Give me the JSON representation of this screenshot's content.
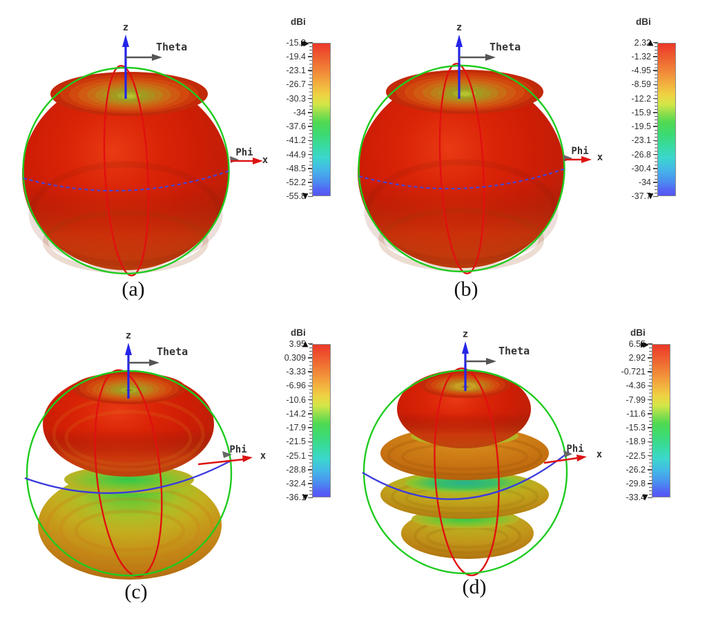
{
  "figure": {
    "background": "#ffffff",
    "panels": [
      {
        "id": "a",
        "caption": "(a)",
        "axis_labels": {
          "z": "z",
          "theta": "Theta",
          "phi": "Phi",
          "x": "x"
        },
        "colorbar": {
          "title": "dBi",
          "marker_top": "▶▶",
          "marker_bottom": "▼",
          "ticks": [
            "-15.8",
            "-19.4",
            "-23.1",
            "-26.7",
            "-30.3",
            "-34",
            "-37.6",
            "-41.2",
            "-44.9",
            "-48.5",
            "-52.2",
            "-55.8"
          ]
        }
      },
      {
        "id": "b",
        "caption": "(b)",
        "axis_labels": {
          "z": "z",
          "theta": "Theta",
          "phi": "Phi",
          "x": "x"
        },
        "colorbar": {
          "title": "dBi",
          "marker_top": "▲",
          "marker_bottom": "▼",
          "ticks": [
            "2.32",
            "-1.32",
            "-4.95",
            "-8.59",
            "-12.2",
            "-15.9",
            "-19.5",
            "-23.1",
            "-26.8",
            "-30.4",
            "-34",
            "-37.7"
          ]
        }
      },
      {
        "id": "c",
        "caption": "(c)",
        "axis_labels": {
          "z": "z",
          "theta": "Theta",
          "phi": "Phi",
          "x": "x"
        },
        "colorbar": {
          "title": "dBi",
          "marker_top": "▲",
          "marker_bottom": "▼",
          "ticks": [
            "3.95",
            "0.309",
            "-3.33",
            "-6.96",
            "-10.6",
            "-14.2",
            "-17.9",
            "-21.5",
            "-25.1",
            "-28.8",
            "-32.4",
            "-36.1"
          ]
        }
      },
      {
        "id": "d",
        "caption": "(d)",
        "axis_labels": {
          "z": "z",
          "theta": "Theta",
          "phi": "Phi",
          "x": "x"
        },
        "colorbar": {
          "title": "dBi",
          "marker_top": "▶▶",
          "marker_bottom": "▼",
          "ticks": [
            "6.55",
            "2.92",
            "-0.721",
            "-4.36",
            "-7.99",
            "-11.6",
            "-15.3",
            "-18.9",
            "-22.5",
            "-26.2",
            "-29.8",
            "-33.4"
          ]
        }
      }
    ],
    "colors": {
      "theta_circle_green": "#1ecb1e",
      "phi_circle_blue": "#4545da",
      "elevation_circle_red": "#e01010",
      "z_axis_blue": "#2424e8",
      "theta_arrow_gray": "#555555",
      "x_axis_red": "#dd1212"
    }
  },
  "chart_data": [
    {
      "type": "heatmap",
      "subtype": "3d-farfield-radiation-pattern",
      "panel": "(a)",
      "quantity": "dBi",
      "colormap": "rainbow (red = max, blue = min)",
      "colorbar_ticks": [
        -15.8,
        -19.4,
        -23.1,
        -26.7,
        -30.3,
        -34,
        -37.6,
        -41.2,
        -44.9,
        -48.5,
        -52.2,
        -55.8
      ],
      "max_dBi": -15.8,
      "min_dBi": -55.8,
      "lobe_count": 1,
      "shape": "single toroidal lobe, omnidirectional in azimuth, yellow-green minimum dimple along +z",
      "axes_shown": [
        "z",
        "Theta",
        "Phi",
        "x"
      ]
    },
    {
      "type": "heatmap",
      "subtype": "3d-farfield-radiation-pattern",
      "panel": "(b)",
      "quantity": "dBi",
      "colormap": "rainbow (red = max, blue = min)",
      "colorbar_ticks": [
        2.32,
        -1.32,
        -4.95,
        -8.59,
        -12.2,
        -15.9,
        -19.5,
        -23.1,
        -26.8,
        -30.4,
        -34,
        -37.7
      ],
      "max_dBi": 2.32,
      "min_dBi": -37.7,
      "lobe_count": 1,
      "shape": "single toroidal lobe, omnidirectional in azimuth, yellow-green minimum dimple along +z",
      "axes_shown": [
        "z",
        "Theta",
        "Phi",
        "x"
      ]
    },
    {
      "type": "heatmap",
      "subtype": "3d-farfield-radiation-pattern",
      "panel": "(c)",
      "quantity": "dBi",
      "colormap": "rainbow (red = max, blue = min)",
      "colorbar_ticks": [
        3.95,
        0.309,
        -3.33,
        -6.96,
        -10.6,
        -14.2,
        -17.9,
        -21.5,
        -25.1,
        -28.8,
        -32.4,
        -36.1
      ],
      "max_dBi": 3.95,
      "min_dBi": -36.1,
      "lobe_count": 2,
      "shape": "two stacked toroidal lobes (red upper, orange lower) separated by a green null ring at the waist",
      "axes_shown": [
        "z",
        "Theta",
        "Phi",
        "x"
      ]
    },
    {
      "type": "heatmap",
      "subtype": "3d-farfield-radiation-pattern",
      "panel": "(d)",
      "quantity": "dBi",
      "colormap": "rainbow (red = max, blue = min)",
      "colorbar_ticks": [
        6.55,
        2.92,
        -0.721,
        -4.36,
        -7.99,
        -11.6,
        -15.3,
        -18.9,
        -22.5,
        -26.2,
        -29.8,
        -33.4
      ],
      "max_dBi": 6.55,
      "min_dBi": -33.4,
      "lobe_count": 4,
      "shape": "four stacked toroidal lobes (red top, orange and yellow lower lobes) separated by green/teal null rings",
      "axes_shown": [
        "z",
        "Theta",
        "Phi",
        "x"
      ]
    }
  ]
}
